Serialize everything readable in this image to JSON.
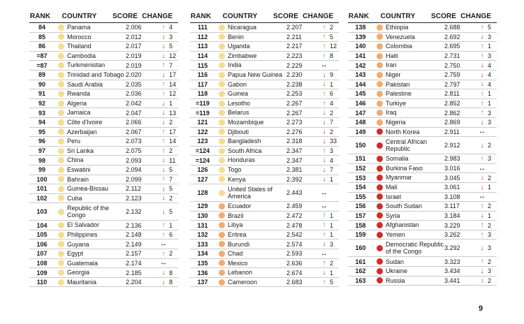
{
  "headers": {
    "rank": "RANK",
    "country": "COUNTRY",
    "score": "SCORE",
    "change": "CHANGE"
  },
  "colors": {
    "dot_light": "#f6dd8d",
    "dot_orange": "#f2aa6e",
    "dot_red": "#d52a2a",
    "up": "#3aa548",
    "down": "#c42a2a"
  },
  "icons": {
    "up": "arrow-up-icon",
    "down": "arrow-down-icon",
    "same": "no-change-icon"
  },
  "page_number": "9",
  "tables": [
    {
      "rows": [
        {
          "rank": "84",
          "dot": "light",
          "country": "Panama",
          "score": "2.006",
          "dir": "up",
          "change": "4"
        },
        {
          "rank": "85",
          "dot": "light",
          "country": "Morocco",
          "score": "2.012",
          "dir": "down",
          "change": "3"
        },
        {
          "rank": "86",
          "dot": "light",
          "country": "Thailand",
          "score": "2.017",
          "dir": "down",
          "change": "5"
        },
        {
          "rank": "=87",
          "dot": "light",
          "country": "Cambodia",
          "score": "2.019",
          "dir": "down",
          "change": "12"
        },
        {
          "rank": "=87",
          "dot": "light",
          "country": "Turkmenistan",
          "score": "2.019",
          "dir": "up",
          "change": "7"
        },
        {
          "rank": "89",
          "dot": "light",
          "country": "Trinidad and Tobago",
          "score": "2.020",
          "dir": "down",
          "change": "17"
        },
        {
          "rank": "90",
          "dot": "light",
          "country": "Saudi Arabia",
          "score": "2.035",
          "dir": "up",
          "change": "14"
        },
        {
          "rank": "91",
          "dot": "light",
          "country": "Rwanda",
          "score": "2.036",
          "dir": "up",
          "change": "12"
        },
        {
          "rank": "92",
          "dot": "light",
          "country": "Algeria",
          "score": "2.042",
          "dir": "down",
          "change": "1"
        },
        {
          "rank": "93",
          "dot": "light",
          "country": "Jamaica",
          "score": "2.047",
          "dir": "down",
          "change": "13"
        },
        {
          "rank": "94",
          "dot": "light",
          "country": "Côte d'Ivoire",
          "score": "2.066",
          "dir": "down",
          "change": "2"
        },
        {
          "rank": "95",
          "dot": "light",
          "country": "Azerbaijan",
          "score": "2.067",
          "dir": "up",
          "change": "17"
        },
        {
          "rank": "96",
          "dot": "light",
          "country": "Peru",
          "score": "2.073",
          "dir": "up",
          "change": "14"
        },
        {
          "rank": "97",
          "dot": "light",
          "country": "Sri Lanka",
          "score": "2.075",
          "dir": "up",
          "change": "2"
        },
        {
          "rank": "98",
          "dot": "light",
          "country": "China",
          "score": "2.093",
          "dir": "down",
          "change": "11"
        },
        {
          "rank": "99",
          "dot": "light",
          "country": "Eswatini",
          "score": "2.094",
          "dir": "down",
          "change": "5"
        },
        {
          "rank": "100",
          "dot": "light",
          "country": "Bahrain",
          "score": "2.099",
          "dir": "up",
          "change": "7"
        },
        {
          "rank": "101",
          "dot": "light",
          "country": "Guinea-Bissau",
          "score": "2.112",
          "dir": "down",
          "change": "5"
        },
        {
          "rank": "102",
          "dot": "light",
          "country": "Cuba",
          "score": "2.123",
          "dir": "down",
          "change": "2"
        },
        {
          "rank": "103",
          "dot": "light",
          "country": "Republic of the Congo",
          "score": "2.132",
          "dir": "down",
          "change": "5",
          "tall": true
        },
        {
          "rank": "104",
          "dot": "light",
          "country": "El Salvador",
          "score": "2.136",
          "dir": "up",
          "change": "1"
        },
        {
          "rank": "105",
          "dot": "light",
          "country": "Philippines",
          "score": "2.148",
          "dir": "up",
          "change": "6"
        },
        {
          "rank": "106",
          "dot": "light",
          "country": "Guyana",
          "score": "2.149",
          "dir": "same",
          "change": ""
        },
        {
          "rank": "107",
          "dot": "light",
          "country": "Egypt",
          "score": "2.157",
          "dir": "up",
          "change": "2"
        },
        {
          "rank": "108",
          "dot": "light",
          "country": "Guatemala",
          "score": "2.174",
          "dir": "same",
          "change": ""
        },
        {
          "rank": "109",
          "dot": "light",
          "country": "Georgia",
          "score": "2.185",
          "dir": "down",
          "change": "8"
        },
        {
          "rank": "110",
          "dot": "light",
          "country": "Mauritania",
          "score": "2.204",
          "dir": "down",
          "change": "8"
        }
      ]
    },
    {
      "rows": [
        {
          "rank": "111",
          "dot": "light",
          "country": "Nicaragua",
          "score": "2.207",
          "dir": "up",
          "change": "2"
        },
        {
          "rank": "112",
          "dot": "light",
          "country": "Benin",
          "score": "2.211",
          "dir": "up",
          "change": "5"
        },
        {
          "rank": "113",
          "dot": "light",
          "country": "Uganda",
          "score": "2.217",
          "dir": "up",
          "change": "12"
        },
        {
          "rank": "114",
          "dot": "light",
          "country": "Zimbabwe",
          "score": "2.223",
          "dir": "up",
          "change": "8"
        },
        {
          "rank": "115",
          "dot": "light",
          "country": "India",
          "score": "2.229",
          "dir": "same",
          "change": ""
        },
        {
          "rank": "116",
          "dot": "light",
          "country": "Papua New Guinea",
          "score": "2.230",
          "dir": "down",
          "change": "9"
        },
        {
          "rank": "117",
          "dot": "light",
          "country": "Gabon",
          "score": "2.238",
          "dir": "down",
          "change": "1"
        },
        {
          "rank": "118",
          "dot": "light",
          "country": "Guinea",
          "score": "2.253",
          "dir": "up",
          "change": "6"
        },
        {
          "rank": "=119",
          "dot": "light",
          "country": "Lesotho",
          "score": "2.267",
          "dir": "up",
          "change": "4"
        },
        {
          "rank": "=119",
          "dot": "light",
          "country": "Belarus",
          "score": "2.267",
          "dir": "down",
          "change": "2"
        },
        {
          "rank": "121",
          "dot": "light",
          "country": "Mozambique",
          "score": "2.273",
          "dir": "down",
          "change": "7"
        },
        {
          "rank": "122",
          "dot": "light",
          "country": "Djibouti",
          "score": "2.276",
          "dir": "down",
          "change": "2"
        },
        {
          "rank": "123",
          "dot": "light",
          "country": "Bangladesh",
          "score": "2.318",
          "dir": "down",
          "change": "33"
        },
        {
          "rank": "=124",
          "dot": "light",
          "country": "South Africa",
          "score": "2.347",
          "dir": "up",
          "change": "3"
        },
        {
          "rank": "=124",
          "dot": "light",
          "country": "Honduras",
          "score": "2.347",
          "dir": "down",
          "change": "4"
        },
        {
          "rank": "126",
          "dot": "light",
          "country": "Togo",
          "score": "2.381",
          "dir": "down",
          "change": "7"
        },
        {
          "rank": "127",
          "dot": "light",
          "country": "Kenya",
          "score": "2.392",
          "dir": "down",
          "change": "1"
        },
        {
          "rank": "128",
          "dot": "light",
          "country": "United States of America",
          "score": "2.443",
          "dir": "same",
          "change": "",
          "tall": true
        },
        {
          "rank": "129",
          "dot": "orange",
          "country": "Ecuador",
          "score": "2.459",
          "dir": "same",
          "change": ""
        },
        {
          "rank": "130",
          "dot": "orange",
          "country": "Brazil",
          "score": "2.472",
          "dir": "up",
          "change": "1"
        },
        {
          "rank": "131",
          "dot": "orange",
          "country": "Libya",
          "score": "2.478",
          "dir": "up",
          "change": "1"
        },
        {
          "rank": "132",
          "dot": "orange",
          "country": "Eritrea",
          "score": "2.542",
          "dir": "up",
          "change": "1"
        },
        {
          "rank": "133",
          "dot": "orange",
          "country": "Burundi",
          "score": "2.574",
          "dir": "down",
          "change": "3"
        },
        {
          "rank": "134",
          "dot": "orange",
          "country": "Chad",
          "score": "2.593",
          "dir": "same",
          "change": ""
        },
        {
          "rank": "135",
          "dot": "orange",
          "country": "Mexico",
          "score": "2.636",
          "dir": "up",
          "change": "2"
        },
        {
          "rank": "136",
          "dot": "orange",
          "country": "Lebanon",
          "score": "2.674",
          "dir": "down",
          "change": "1"
        },
        {
          "rank": "137",
          "dot": "orange",
          "country": "Cameroon",
          "score": "2.683",
          "dir": "up",
          "change": "5"
        }
      ]
    },
    {
      "rows": [
        {
          "rank": "138",
          "dot": "orange",
          "country": "Ethiopia",
          "score": "2.688",
          "dir": "up",
          "change": "5"
        },
        {
          "rank": "139",
          "dot": "orange",
          "country": "Venezuela",
          "score": "2.692",
          "dir": "down",
          "change": "3"
        },
        {
          "rank": "140",
          "dot": "orange",
          "country": "Colombia",
          "score": "2.695",
          "dir": "up",
          "change": "1"
        },
        {
          "rank": "141",
          "dot": "orange",
          "country": "Haiti",
          "score": "2.731",
          "dir": "up",
          "change": "3"
        },
        {
          "rank": "142",
          "dot": "orange",
          "country": "Iran",
          "score": "2.750",
          "dir": "down",
          "change": "4"
        },
        {
          "rank": "143",
          "dot": "orange",
          "country": "Niger",
          "score": "2.759",
          "dir": "down",
          "change": "4"
        },
        {
          "rank": "144",
          "dot": "orange",
          "country": "Pakistan",
          "score": "2.797",
          "dir": "down",
          "change": "4"
        },
        {
          "rank": "145",
          "dot": "orange",
          "country": "Palestine",
          "score": "2.811",
          "dir": "up",
          "change": "1"
        },
        {
          "rank": "146",
          "dot": "orange",
          "country": "Turkiye",
          "score": "2.852",
          "dir": "up",
          "change": "1"
        },
        {
          "rank": "147",
          "dot": "orange",
          "country": "Iraq",
          "score": "2.862",
          "dir": "up",
          "change": "3"
        },
        {
          "rank": "148",
          "dot": "orange",
          "country": "Nigeria",
          "score": "2.869",
          "dir": "down",
          "change": "3"
        },
        {
          "rank": "149",
          "dot": "red",
          "country": "North Korea",
          "score": "2.911",
          "dir": "same",
          "change": ""
        },
        {
          "rank": "150",
          "dot": "red",
          "country": "Central African Republic",
          "score": "2.912",
          "dir": "down",
          "change": "2",
          "tall": true
        },
        {
          "rank": "151",
          "dot": "red",
          "country": "Somalia",
          "score": "2.983",
          "dir": "up",
          "change": "3"
        },
        {
          "rank": "152",
          "dot": "red",
          "country": "Burkina Faso",
          "score": "3.016",
          "dir": "same",
          "change": ""
        },
        {
          "rank": "153",
          "dot": "red",
          "country": "Myanmar",
          "score": "3.045",
          "dir": "down",
          "change": "2"
        },
        {
          "rank": "154",
          "dot": "red",
          "country": "Mali",
          "score": "3.061",
          "dir": "down",
          "change": "1"
        },
        {
          "rank": "155",
          "dot": "red",
          "country": "Israel",
          "score": "3.108",
          "dir": "same",
          "change": ""
        },
        {
          "rank": "156",
          "dot": "red",
          "country": "South Sudan",
          "score": "3.117",
          "dir": "up",
          "change": "2"
        },
        {
          "rank": "157",
          "dot": "red",
          "country": "Syria",
          "score": "3.184",
          "dir": "down",
          "change": "1"
        },
        {
          "rank": "158",
          "dot": "red",
          "country": "Afghanistan",
          "score": "3.229",
          "dir": "up",
          "change": "2"
        },
        {
          "rank": "159",
          "dot": "red",
          "country": "Yemen",
          "score": "3.262",
          "dir": "up",
          "change": "3"
        },
        {
          "rank": "160",
          "dot": "red",
          "country": "Democratic Republic of the Congo",
          "score": "3.292",
          "dir": "down",
          "change": "3",
          "tall": true
        },
        {
          "rank": "161",
          "dot": "red",
          "country": "Sudan",
          "score": "3.323",
          "dir": "up",
          "change": "2"
        },
        {
          "rank": "162",
          "dot": "red",
          "country": "Ukraine",
          "score": "3.434",
          "dir": "down",
          "change": "3"
        },
        {
          "rank": "163",
          "dot": "red",
          "country": "Russia",
          "score": "3.441",
          "dir": "down",
          "change": "2"
        }
      ]
    }
  ]
}
